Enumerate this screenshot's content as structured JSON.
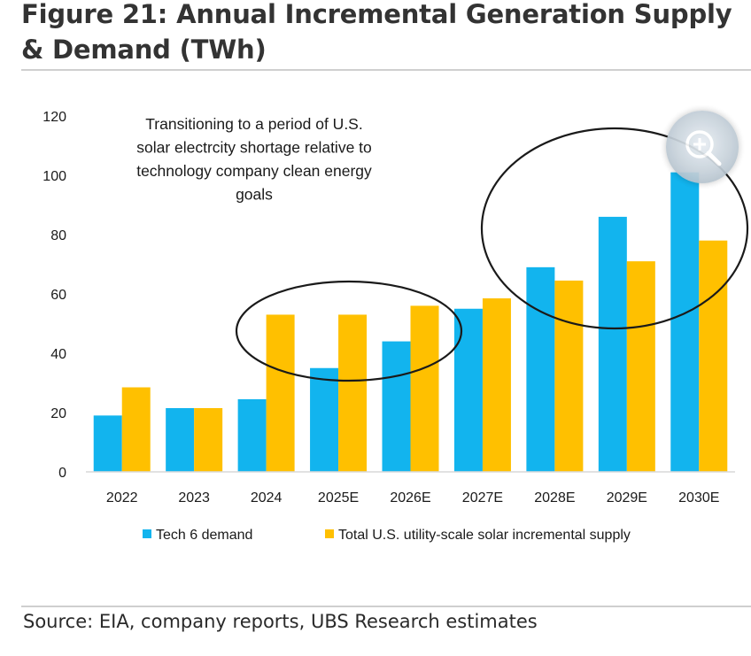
{
  "figure": {
    "title": "Figure 21: Annual Incremental Generation Supply & Demand (TWh)",
    "source": "Source: EIA, company reports, UBS Research estimates"
  },
  "chart_data": {
    "type": "bar",
    "title": "",
    "xlabel": "",
    "ylabel": "",
    "ylim": [
      0,
      120
    ],
    "yticks": [
      0,
      20,
      40,
      60,
      80,
      100,
      120
    ],
    "categories": [
      "2022",
      "2023",
      "2024",
      "2025E",
      "2026E",
      "2027E",
      "2028E",
      "2029E",
      "2030E"
    ],
    "series": [
      {
        "name": "Tech 6 demand",
        "color": "#12b4ee",
        "values": [
          19,
          21.5,
          24.5,
          35,
          44,
          55,
          69,
          86,
          101
        ]
      },
      {
        "name": "Total U.S. utility-scale solar incremental supply",
        "color": "#ffc000",
        "values": [
          28.5,
          21.5,
          53,
          53,
          56,
          58.5,
          64.5,
          71,
          78
        ]
      }
    ],
    "annotation": "Transitioning to a period of U.S. solar electrcity shortage relative to technology company clean energy goals",
    "annotation_lines": [
      "Transitioning to a period of U.S.",
      "solar electrcity shortage relative to",
      "technology company clean energy",
      "goals"
    ],
    "legend_position": "bottom",
    "grid": false
  },
  "icons": {
    "zoom": "zoom-in-icon"
  }
}
